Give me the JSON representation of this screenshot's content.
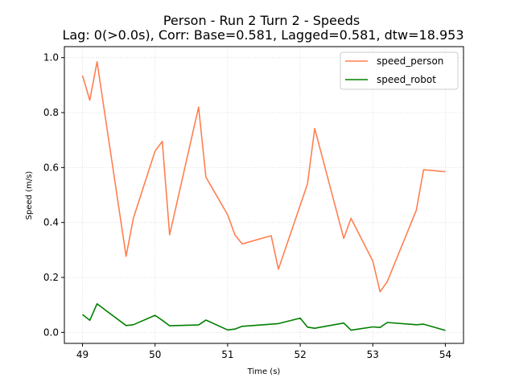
{
  "chart_data": {
    "type": "line",
    "title": "Person - Run 2 Turn 2 - Speeds",
    "subtitle": "Lag: 0(>0.0s), Corr: Base=0.581, Lagged=0.581, dtw=18.953",
    "xlabel": "Time (s)",
    "ylabel": "Speed (m/s)",
    "xlim": [
      48.75,
      54.25
    ],
    "ylim": [
      -0.04,
      1.04
    ],
    "xticks": [
      49,
      50,
      51,
      52,
      53,
      54
    ],
    "yticks": [
      0.0,
      0.2,
      0.4,
      0.6,
      0.8,
      1.0
    ],
    "xtick_labels": [
      "49",
      "50",
      "51",
      "52",
      "53",
      "54"
    ],
    "ytick_labels": [
      "0.0",
      "0.2",
      "0.4",
      "0.6",
      "0.8",
      "1.0"
    ],
    "grid": true,
    "legend_position": "top-right",
    "series": [
      {
        "name": "speed_person",
        "color": "#ff7f50",
        "x": [
          49.0,
          49.1,
          49.2,
          49.6,
          49.7,
          50.0,
          50.1,
          50.2,
          50.6,
          50.7,
          51.0,
          51.1,
          51.2,
          51.6,
          51.7,
          52.1,
          52.2,
          52.6,
          52.7,
          53.0,
          53.1,
          53.2,
          53.6,
          53.7,
          54.0
        ],
        "y": [
          0.935,
          0.845,
          0.985,
          0.277,
          0.415,
          0.66,
          0.695,
          0.355,
          0.82,
          0.565,
          0.428,
          0.355,
          0.322,
          0.352,
          0.23,
          0.54,
          0.742,
          0.342,
          0.415,
          0.26,
          0.148,
          0.185,
          0.445,
          0.592,
          0.585
        ]
      },
      {
        "name": "speed_robot",
        "color": "#008000",
        "x": [
          49.0,
          49.1,
          49.2,
          49.6,
          49.7,
          50.0,
          50.1,
          50.2,
          50.6,
          50.7,
          51.0,
          51.1,
          51.2,
          51.7,
          52.0,
          52.1,
          52.2,
          52.6,
          52.7,
          53.0,
          53.1,
          53.2,
          53.6,
          53.7,
          54.0
        ],
        "y": [
          0.065,
          0.044,
          0.104,
          0.025,
          0.028,
          0.062,
          0.044,
          0.024,
          0.027,
          0.045,
          0.009,
          0.012,
          0.022,
          0.032,
          0.052,
          0.019,
          0.015,
          0.034,
          0.008,
          0.02,
          0.018,
          0.036,
          0.028,
          0.03,
          0.007
        ]
      }
    ]
  }
}
